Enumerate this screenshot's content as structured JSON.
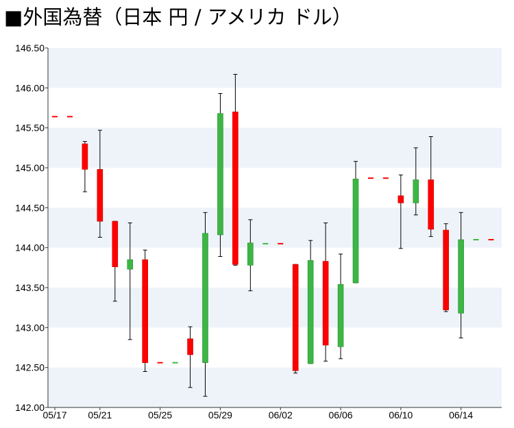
{
  "title": "■外国為替（日本 円 / アメリカ ドル）",
  "colors": {
    "up": "#3cb644",
    "down": "#ff0000",
    "band": "#eef3f9",
    "axis": "#333333"
  },
  "chart_data": {
    "type": "candlestick",
    "title": "■外国為替（日本 円 / アメリカ ドル）",
    "ylim": [
      142.0,
      146.5
    ],
    "grid": "alternating horizontal bands",
    "yticks": [
      "142.00",
      "142.50",
      "143.00",
      "143.50",
      "144.00",
      "144.50",
      "145.00",
      "145.50",
      "146.00",
      "146.50"
    ],
    "xticks": [
      "05/17",
      "05/21",
      "05/25",
      "05/29",
      "06/02",
      "06/06",
      "06/10",
      "06/14"
    ],
    "candles": [
      {
        "date": "05/17",
        "open": 145.64,
        "high": 145.64,
        "low": 145.64,
        "close": 145.64,
        "dir": "down"
      },
      {
        "date": "05/18",
        "open": 145.64,
        "high": 145.64,
        "low": 145.64,
        "close": 145.64,
        "dir": "down"
      },
      {
        "date": "05/20",
        "open": 145.3,
        "high": 145.33,
        "low": 144.7,
        "close": 144.98,
        "dir": "down"
      },
      {
        "date": "05/21",
        "open": 144.98,
        "high": 145.47,
        "low": 144.13,
        "close": 144.33,
        "dir": "down"
      },
      {
        "date": "05/22",
        "open": 144.33,
        "high": 144.33,
        "low": 143.33,
        "close": 143.76,
        "dir": "down"
      },
      {
        "date": "05/23",
        "open": 143.73,
        "high": 144.31,
        "low": 142.85,
        "close": 143.85,
        "dir": "up"
      },
      {
        "date": "05/24",
        "open": 143.85,
        "high": 143.97,
        "low": 142.45,
        "close": 142.56,
        "dir": "down"
      },
      {
        "date": "05/25",
        "open": 142.56,
        "high": 142.56,
        "low": 142.56,
        "close": 142.56,
        "dir": "down"
      },
      {
        "date": "05/26",
        "open": 142.56,
        "high": 142.56,
        "low": 142.56,
        "close": 142.56,
        "dir": "up"
      },
      {
        "date": "05/27",
        "open": 142.86,
        "high": 143.01,
        "low": 142.25,
        "close": 142.66,
        "dir": "down"
      },
      {
        "date": "05/28",
        "open": 142.56,
        "high": 144.44,
        "low": 142.14,
        "close": 144.18,
        "dir": "up"
      },
      {
        "date": "05/29",
        "open": 144.16,
        "high": 145.93,
        "low": 143.89,
        "close": 145.68,
        "dir": "up"
      },
      {
        "date": "05/30",
        "open": 145.7,
        "high": 146.17,
        "low": 143.78,
        "close": 143.79,
        "dir": "down"
      },
      {
        "date": "05/31",
        "open": 143.78,
        "high": 144.35,
        "low": 143.46,
        "close": 144.06,
        "dir": "up"
      },
      {
        "date": "06/01",
        "open": 144.05,
        "high": 144.05,
        "low": 144.05,
        "close": 144.05,
        "dir": "up"
      },
      {
        "date": "06/02",
        "open": 144.05,
        "high": 144.05,
        "low": 144.05,
        "close": 144.05,
        "dir": "down"
      },
      {
        "date": "06/03",
        "open": 143.79,
        "high": 143.79,
        "low": 142.43,
        "close": 142.46,
        "dir": "down"
      },
      {
        "date": "06/04",
        "open": 142.55,
        "high": 144.09,
        "low": 142.55,
        "close": 143.84,
        "dir": "up"
      },
      {
        "date": "06/05",
        "open": 143.83,
        "high": 144.31,
        "low": 142.58,
        "close": 142.78,
        "dir": "down"
      },
      {
        "date": "06/06",
        "open": 142.76,
        "high": 143.92,
        "low": 142.61,
        "close": 143.54,
        "dir": "up"
      },
      {
        "date": "06/07",
        "open": 143.56,
        "high": 145.08,
        "low": 143.56,
        "close": 144.86,
        "dir": "up"
      },
      {
        "date": "06/08",
        "open": 144.87,
        "high": 144.87,
        "low": 144.87,
        "close": 144.87,
        "dir": "down"
      },
      {
        "date": "06/09",
        "open": 144.87,
        "high": 144.87,
        "low": 144.87,
        "close": 144.87,
        "dir": "down"
      },
      {
        "date": "06/10",
        "open": 144.65,
        "high": 144.91,
        "low": 143.99,
        "close": 144.56,
        "dir": "down"
      },
      {
        "date": "06/11",
        "open": 144.56,
        "high": 145.25,
        "low": 144.41,
        "close": 144.85,
        "dir": "up"
      },
      {
        "date": "06/12",
        "open": 144.85,
        "high": 145.39,
        "low": 144.14,
        "close": 144.23,
        "dir": "down"
      },
      {
        "date": "06/13",
        "open": 144.22,
        "high": 144.3,
        "low": 143.2,
        "close": 143.22,
        "dir": "down"
      },
      {
        "date": "06/14",
        "open": 143.18,
        "high": 144.44,
        "low": 142.87,
        "close": 144.1,
        "dir": "up"
      },
      {
        "date": "06/15",
        "open": 144.1,
        "high": 144.1,
        "low": 144.1,
        "close": 144.1,
        "dir": "up"
      },
      {
        "date": "06/16",
        "open": 144.1,
        "high": 144.1,
        "low": 144.1,
        "close": 144.1,
        "dir": "down"
      }
    ]
  }
}
